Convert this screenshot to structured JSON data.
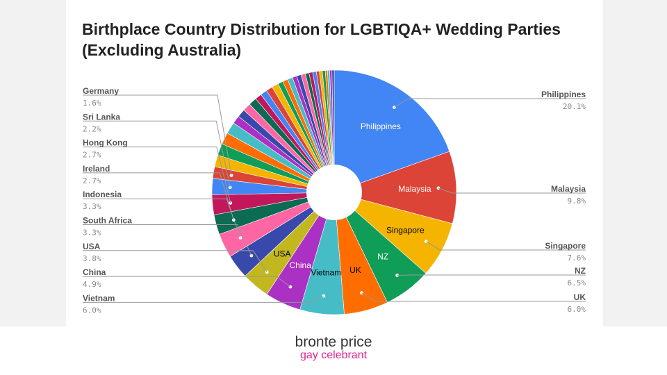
{
  "chart_data": {
    "type": "pie",
    "donut": true,
    "title": "Birthplace Country Distribution for LGBTIQA+ Wedding Parties (Excluding Australia)",
    "slices": [
      {
        "label": "Philippines",
        "value": 20.1,
        "color": "#4285f4",
        "inside_label": "Philippines",
        "inside_color": "#ffffff",
        "callout": "right"
      },
      {
        "label": "Malaysia",
        "value": 9.8,
        "color": "#db4437",
        "inside_label": "Malaysia",
        "inside_color": "#ffffff",
        "callout": "right"
      },
      {
        "label": "Singapore",
        "value": 7.6,
        "color": "#f4b400",
        "inside_label": "Singapore",
        "inside_color": "#000000",
        "callout": "right"
      },
      {
        "label": "NZ",
        "value": 6.5,
        "color": "#0f9d58",
        "inside_label": "NZ",
        "inside_color": "#ffffff",
        "callout": "right"
      },
      {
        "label": "UK",
        "value": 6.0,
        "color": "#ff6d00",
        "inside_label": "UK",
        "inside_color": "#000000",
        "callout": "right"
      },
      {
        "label": "Vietnam",
        "value": 6.0,
        "color": "#46bdc6",
        "inside_label": "Vietnam",
        "inside_color": "#000000",
        "callout": "left"
      },
      {
        "label": "China",
        "value": 4.9,
        "color": "#ab30c4",
        "inside_label": "China",
        "inside_color": "#ffffff",
        "callout": "left"
      },
      {
        "label": "USA",
        "value": 3.8,
        "color": "#c2b71f",
        "inside_label": "USA",
        "inside_color": "#000000",
        "callout": "left"
      },
      {
        "label": "South Africa",
        "value": 3.3,
        "color": "#3949ab",
        "callout": "left"
      },
      {
        "label": "Indonesia",
        "value": 3.3,
        "color": "#ff66a3",
        "callout": "left"
      },
      {
        "label": "Ireland",
        "value": 2.7,
        "color": "#0b6b53",
        "callout": "left"
      },
      {
        "label": "Hong Kong",
        "value": 2.7,
        "color": "#c2185b",
        "callout": "left"
      },
      {
        "label": "Sri Lanka",
        "value": 2.2,
        "color": "#4285f4",
        "callout": "left"
      },
      {
        "label": "Germany",
        "value": 1.6,
        "color": "#db4437",
        "callout": "left"
      },
      {
        "label": "",
        "value": 1.6,
        "color": "#f4b400"
      },
      {
        "label": "",
        "value": 1.6,
        "color": "#0f9d58"
      },
      {
        "label": "",
        "value": 1.6,
        "color": "#ff6d00"
      },
      {
        "label": "",
        "value": 1.6,
        "color": "#46bdc6"
      },
      {
        "label": "",
        "value": 1.1,
        "color": "#ab30c4"
      },
      {
        "label": "",
        "value": 1.1,
        "color": "#3949ab"
      },
      {
        "label": "",
        "value": 1.1,
        "color": "#ff66a3"
      },
      {
        "label": "",
        "value": 1.1,
        "color": "#0b6b53"
      },
      {
        "label": "",
        "value": 0.9,
        "color": "#c2185b"
      },
      {
        "label": "",
        "value": 0.9,
        "color": "#4285f4"
      },
      {
        "label": "",
        "value": 0.9,
        "color": "#db4437"
      },
      {
        "label": "",
        "value": 0.9,
        "color": "#f4b400"
      },
      {
        "label": "",
        "value": 0.7,
        "color": "#0f9d58"
      },
      {
        "label": "",
        "value": 0.7,
        "color": "#ff6d00"
      },
      {
        "label": "",
        "value": 0.7,
        "color": "#46bdc6"
      },
      {
        "label": "",
        "value": 0.6,
        "color": "#ab30c4"
      },
      {
        "label": "",
        "value": 0.6,
        "color": "#3949ab"
      },
      {
        "label": "",
        "value": 0.6,
        "color": "#ff66a3"
      },
      {
        "label": "",
        "value": 0.5,
        "color": "#0b6b53"
      },
      {
        "label": "",
        "value": 0.5,
        "color": "#c2185b"
      },
      {
        "label": "",
        "value": 0.5,
        "color": "#4285f4"
      },
      {
        "label": "",
        "value": 0.4,
        "color": "#db4437"
      },
      {
        "label": "",
        "value": 0.4,
        "color": "#f4b400"
      },
      {
        "label": "",
        "value": 0.4,
        "color": "#0f9d58"
      },
      {
        "label": "",
        "value": 0.3,
        "color": "#ff6d00"
      },
      {
        "label": "",
        "value": 0.3,
        "color": "#46bdc6"
      },
      {
        "label": "",
        "value": 0.3,
        "color": "#ab30c4"
      },
      {
        "label": "",
        "value": 0.3,
        "color": "#3949ab"
      }
    ],
    "value_format": "percent"
  },
  "branding": {
    "name": "bronte price",
    "tagline": "gay celebrant",
    "tagline_color": "#e0218a"
  }
}
